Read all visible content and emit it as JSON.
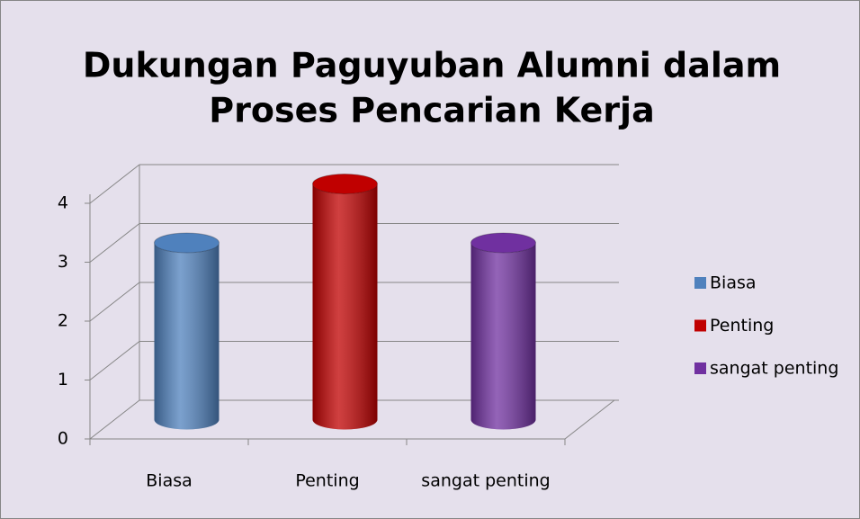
{
  "chart_data": {
    "type": "bar3d",
    "title": [
      "Dukungan Paguyuban Alumni dalam",
      "Proses Pencarian Kerja"
    ],
    "categories": [
      "Biasa",
      "Penting",
      "sangat penting"
    ],
    "values": [
      3,
      4,
      3
    ],
    "colors": [
      "#4f81bd",
      "#c00000",
      "#7030a0"
    ],
    "ylim": [
      0,
      4
    ],
    "yticks": [
      0,
      1,
      2,
      3,
      4
    ],
    "grid": true,
    "legend": "right"
  }
}
